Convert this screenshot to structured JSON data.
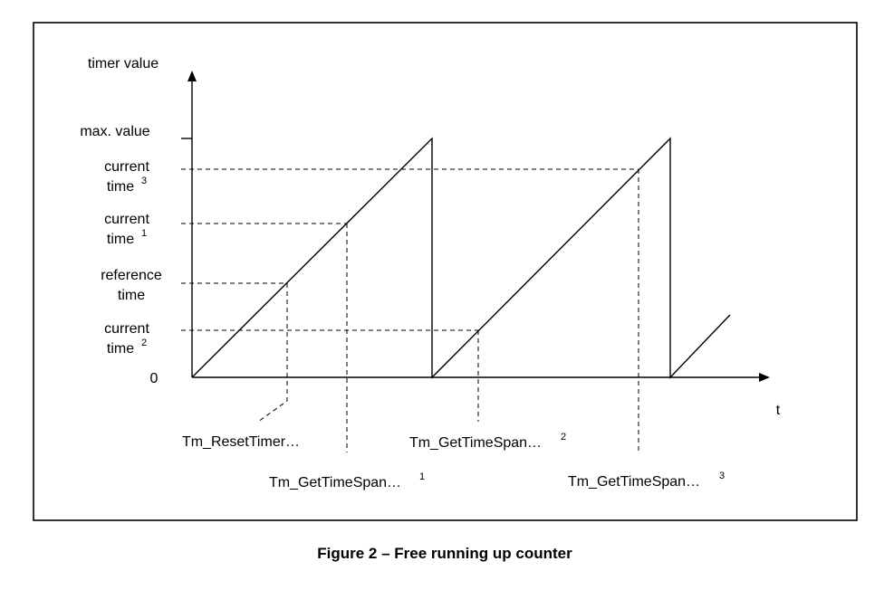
{
  "figure": {
    "caption": "Figure 2 – Free running up counter",
    "axes": {
      "y_title": "timer value",
      "x_title": "t",
      "origin": "0"
    },
    "y_levels": [
      {
        "id": "max",
        "lines": [
          "max. value"
        ],
        "sup": ""
      },
      {
        "id": "current3",
        "lines": [
          "current",
          "time"
        ],
        "sup": "3"
      },
      {
        "id": "current1",
        "lines": [
          "current",
          "time"
        ],
        "sup": "1"
      },
      {
        "id": "reference",
        "lines": [
          "reference",
          "time"
        ],
        "sup": ""
      },
      {
        "id": "current2",
        "lines": [
          "current",
          "time"
        ],
        "sup": "2"
      }
    ],
    "calls": [
      {
        "id": "reset",
        "label": "Tm_ResetTimer…",
        "sup": ""
      },
      {
        "id": "span1",
        "label": "Tm_GetTimeSpan…",
        "sup": "1"
      },
      {
        "id": "span2",
        "label": "Tm_GetTimeSpan…",
        "sup": "2"
      },
      {
        "id": "span3",
        "label": "Tm_GetTimeSpan…",
        "sup": "3"
      }
    ]
  }
}
